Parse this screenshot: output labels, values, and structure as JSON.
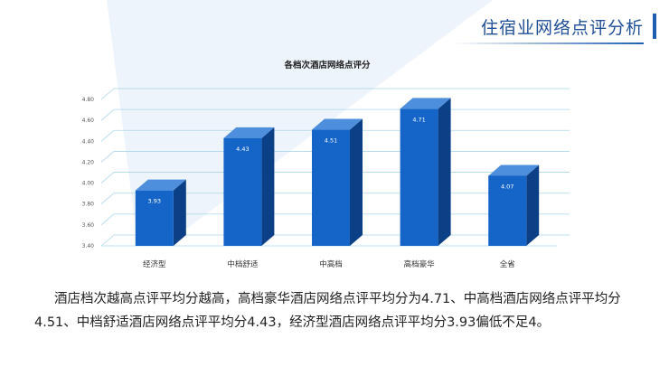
{
  "slide": {
    "title": "住宿业网络点评分析",
    "summary": "酒店档次越高点评平均分越高，高档豪华酒店网络点评平均分为4.71、中高档酒店网络点评平均分4.51、中档舒适酒店网络点评平均分4.43，经济型酒店网络点评平均分3.93偏低不足4。"
  },
  "chart_data": {
    "type": "bar",
    "title": "各档次酒店网络点评分",
    "xlabel": "",
    "ylabel": "",
    "categories": [
      "经济型",
      "中档舒适",
      "中高档",
      "高档豪华",
      "全省"
    ],
    "values": [
      3.93,
      4.43,
      4.51,
      4.71,
      4.07
    ],
    "value_labels": [
      "3.93",
      "4.43",
      "4.51",
      "4.71",
      "4.07"
    ],
    "yticks": [
      "3.40",
      "3.60",
      "3.80",
      "4.00",
      "4.20",
      "4.40",
      "4.60",
      "4.80"
    ],
    "ylim": [
      3.4,
      4.8
    ],
    "grid": true,
    "legend": "none",
    "colors": {
      "bar_front": "#1565c8",
      "bar_side": "#0b3f86",
      "bar_top": "#4d8fdc",
      "grid": "#a9d6ea",
      "title_accent": "#1f5fb0"
    }
  }
}
